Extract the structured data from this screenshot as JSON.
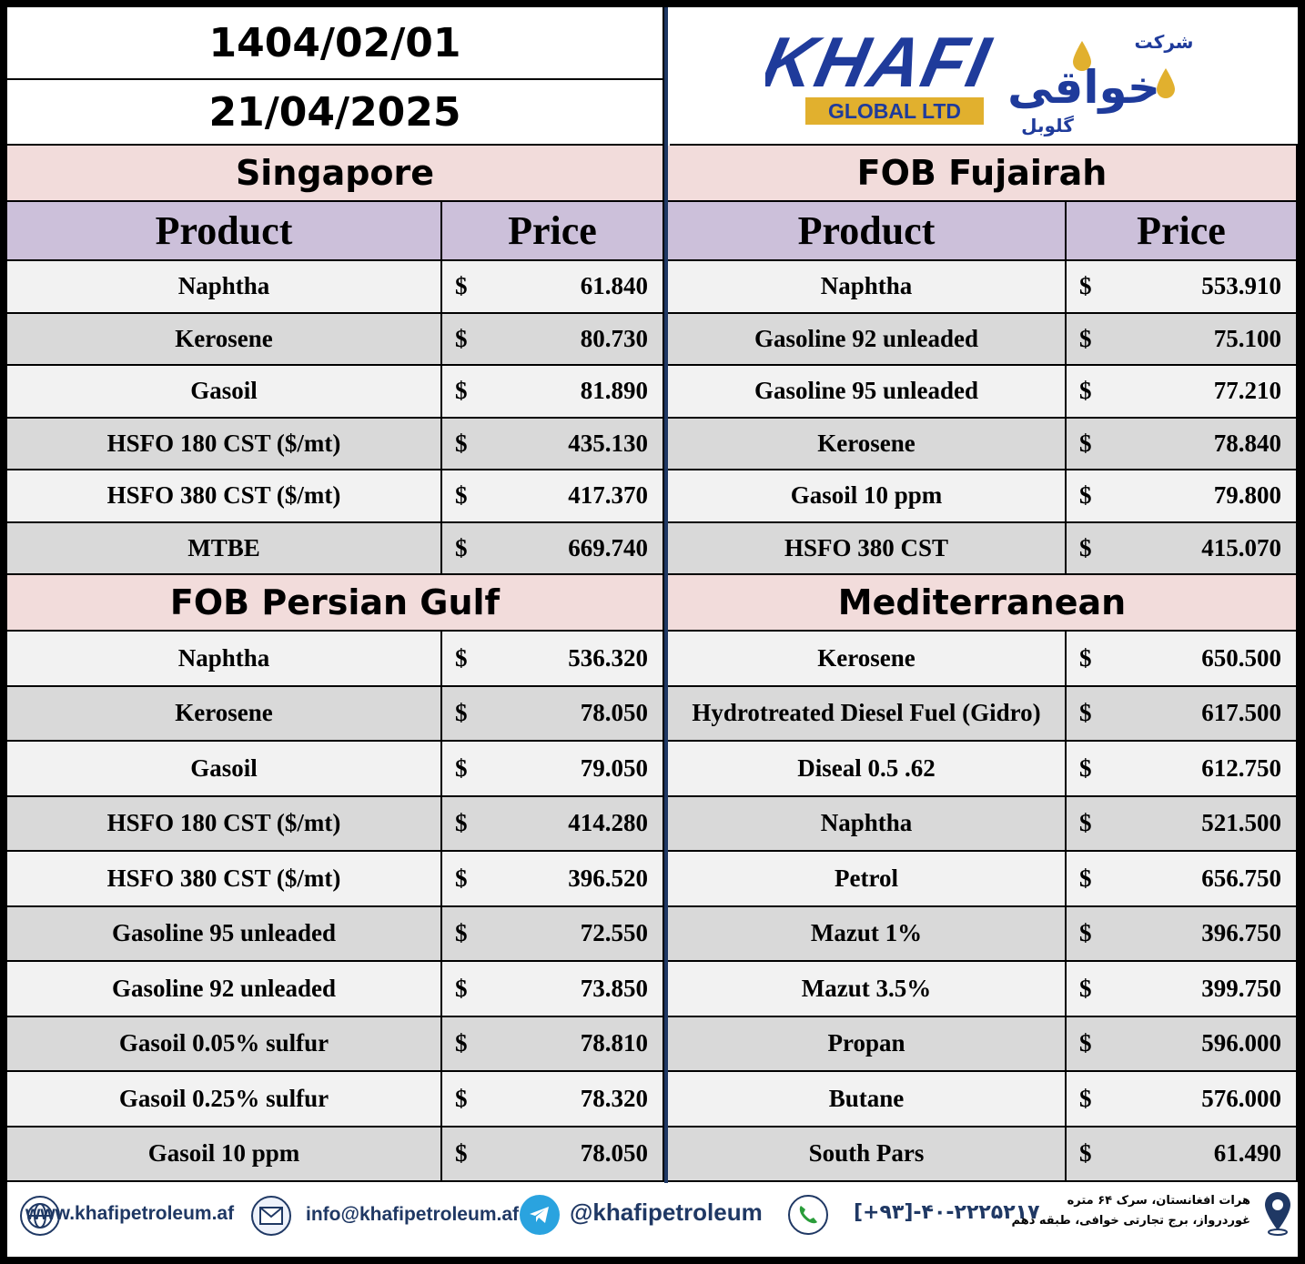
{
  "dates": {
    "persian": "1404/02/01",
    "gregorian": "21/04/2025"
  },
  "logo": {
    "brand": "KHAFI",
    "sub": "GLOBAL LTD",
    "persian_top": "شرکت",
    "persian_main": "خواقی",
    "persian_bottom": "گلوبل"
  },
  "currency_symbol": "$",
  "headers": {
    "product": "Product",
    "price": "Price"
  },
  "singapore": {
    "title": "Singapore",
    "rows": [
      {
        "product": "Naphtha",
        "price": "61.840"
      },
      {
        "product": "Kerosene",
        "price": "80.730"
      },
      {
        "product": "Gasoil",
        "price": "81.890"
      },
      {
        "product": "HSFO 180 CST ($/mt)",
        "price": "435.130"
      },
      {
        "product": "HSFO 380 CST ($/mt)",
        "price": "417.370"
      },
      {
        "product": "MTBE",
        "price": "669.740"
      }
    ]
  },
  "fujairah": {
    "title": "FOB Fujairah",
    "rows": [
      {
        "product": "Naphtha",
        "price": "553.910"
      },
      {
        "product": "Gasoline 92 unleaded",
        "price": "75.100"
      },
      {
        "product": "Gasoline 95 unleaded",
        "price": "77.210"
      },
      {
        "product": "Kerosene",
        "price": "78.840"
      },
      {
        "product": "Gasoil 10 ppm",
        "price": "79.800"
      },
      {
        "product": "HSFO 380 CST",
        "price": "415.070"
      }
    ]
  },
  "persian_gulf": {
    "title": "FOB Persian Gulf",
    "rows": [
      {
        "product": "Naphtha",
        "price": "536.320"
      },
      {
        "product": "Kerosene",
        "price": "78.050"
      },
      {
        "product": "Gasoil",
        "price": "79.050"
      },
      {
        "product": "HSFO 180 CST ($/mt)",
        "price": "414.280"
      },
      {
        "product": "HSFO 380 CST ($/mt)",
        "price": "396.520"
      },
      {
        "product": "Gasoline 95 unleaded",
        "price": "72.550"
      },
      {
        "product": "Gasoline 92 unleaded",
        "price": "73.850"
      },
      {
        "product": "Gasoil 0.05% sulfur",
        "price": "78.810"
      },
      {
        "product": "Gasoil 0.25% sulfur",
        "price": "78.320"
      },
      {
        "product": "Gasoil 10 ppm",
        "price": "78.050"
      }
    ]
  },
  "mediterranean": {
    "title": "Mediterranean",
    "rows": [
      {
        "product": "Kerosene",
        "price": "650.500"
      },
      {
        "product": "Hydrotreated Diesel Fuel (Gidro)",
        "price": "617.500"
      },
      {
        "product": "Diseal 0.5 .62",
        "price": "612.750"
      },
      {
        "product": "Naphtha",
        "price": "521.500"
      },
      {
        "product": "Petrol",
        "price": "656.750"
      },
      {
        "product": "Mazut 1%",
        "price": "396.750"
      },
      {
        "product": "Mazut 3.5%",
        "price": "399.750"
      },
      {
        "product": "Propan",
        "price": "596.000"
      },
      {
        "product": "Butane",
        "price": "576.000"
      },
      {
        "product": "South Pars",
        "price": "61.490"
      }
    ]
  },
  "footer": {
    "website": "www.khafipetroleum.af",
    "email": "info@khafipetroleum.af",
    "telegram": "@khafipetroleum",
    "phone": "[+۹۳]-۴۰-۲۲۲۵۲۱۷",
    "address_line1": "هرات افغانستان، سرک ۶۴ متره",
    "address_line2": "غوردرواز، برج تجارتی خوافی، طبقه دهم"
  },
  "colors": {
    "region_bg": "#f2dcdb",
    "header_bg": "#ccc0da",
    "row_light": "#f2f2f2",
    "row_dark": "#d9d9d9",
    "brand_blue": "#1f3b9b",
    "brand_gold": "#e1b02e"
  }
}
